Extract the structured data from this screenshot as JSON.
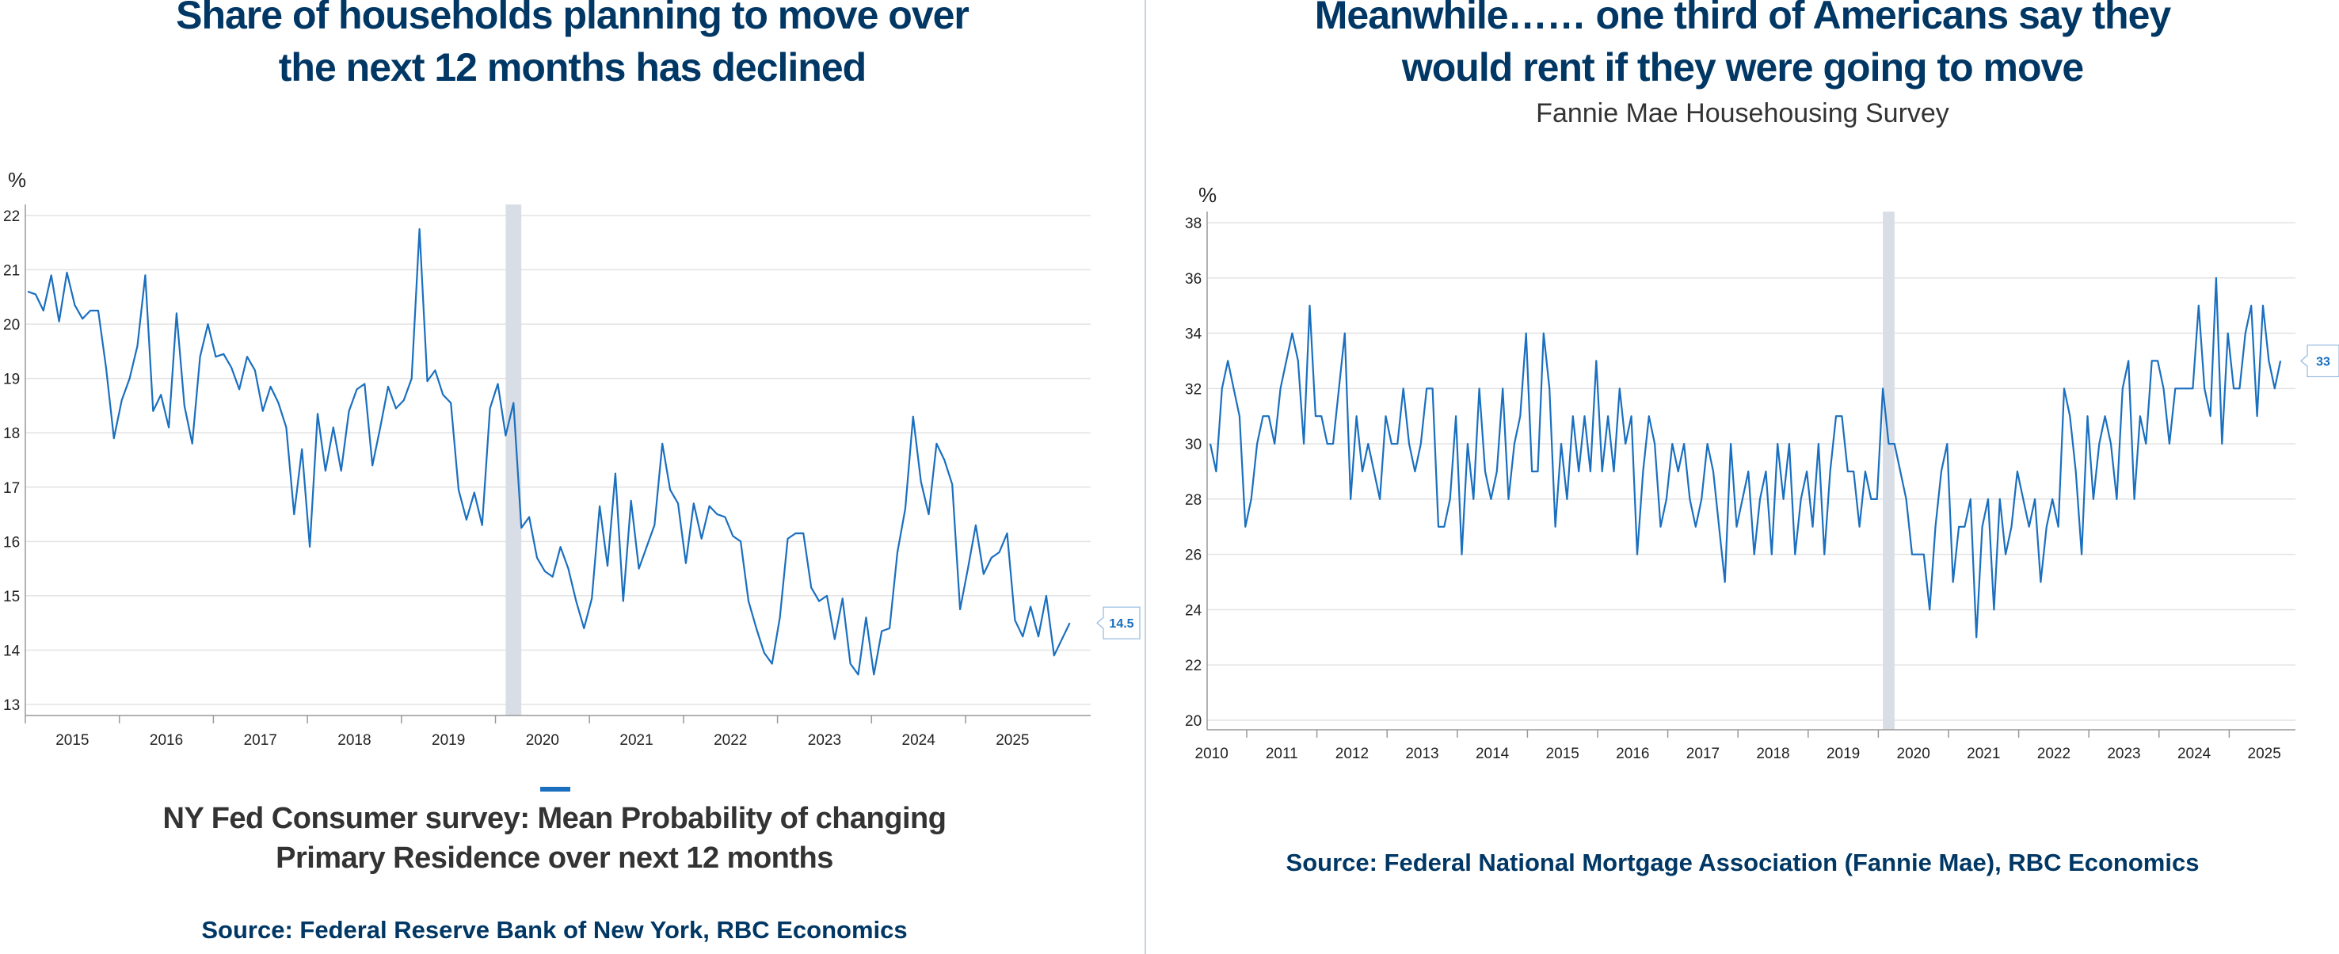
{
  "colors": {
    "title": "#003764",
    "line": "#1a6fbf",
    "recession_shade": "#d9dee6",
    "grid": "#e3e3e3"
  },
  "left": {
    "title_line1": "Share of households planning to move over",
    "title_line2": "the next 12 months has declined",
    "caption_line1": "NY Fed Consumer survey: Mean Probability of changing",
    "caption_line2": "Primary Residence over next 12 months",
    "source": "Source: Federal Reserve Bank of New York, RBC Economics"
  },
  "right": {
    "title_line1": "Meanwhile…… one third of Americans say they",
    "title_line2": "would rent if they were going to move",
    "subtitle": "Fannie Mae Househousing Survey",
    "source": "Source: Federal National Mortgage Association (Fannie Mae), RBC Economics"
  },
  "chart_data": [
    {
      "type": "line",
      "ylabel": "%",
      "ylim": [
        13,
        22
      ],
      "yticks": [
        "13",
        "14",
        "15",
        "16",
        "17",
        "18",
        "19",
        "20",
        "21",
        "22"
      ],
      "xticks": [
        "2015",
        "2016",
        "2017",
        "2018",
        "2019",
        "2020",
        "2021",
        "2022",
        "2023",
        "2024",
        "2025"
      ],
      "grid": true,
      "x_start": "2015-01",
      "x_frequency": "monthly",
      "shaded_period": [
        "2020-02",
        "2020-04"
      ],
      "last_value_label": "14.5",
      "values": [
        20.6,
        20.55,
        20.25,
        20.9,
        20.05,
        20.95,
        20.35,
        20.1,
        20.25,
        20.25,
        19.2,
        17.9,
        18.6,
        19.0,
        19.6,
        20.9,
        18.4,
        18.7,
        18.1,
        20.2,
        18.5,
        17.8,
        19.4,
        20.0,
        19.4,
        19.45,
        19.2,
        18.8,
        19.4,
        19.15,
        18.4,
        18.85,
        18.55,
        18.1,
        16.5,
        17.7,
        15.9,
        18.35,
        17.3,
        18.1,
        17.3,
        18.4,
        18.8,
        18.9,
        17.4,
        18.1,
        18.85,
        18.45,
        18.6,
        19.0,
        21.75,
        18.95,
        19.15,
        18.7,
        18.55,
        16.95,
        16.4,
        16.9,
        16.3,
        18.45,
        18.9,
        17.95,
        18.55,
        16.25,
        16.45,
        15.7,
        15.45,
        15.35,
        15.9,
        15.5,
        14.9,
        14.4,
        14.95,
        16.65,
        15.55,
        17.25,
        14.9,
        16.75,
        15.5,
        15.9,
        16.3,
        17.8,
        16.95,
        16.7,
        15.6,
        16.7,
        16.05,
        16.65,
        16.5,
        16.45,
        16.1,
        16.0,
        14.9,
        14.4,
        13.95,
        13.75,
        14.6,
        16.05,
        16.15,
        16.15,
        15.15,
        14.9,
        15.0,
        14.2,
        14.95,
        13.75,
        13.55,
        14.6,
        13.55,
        14.35,
        14.4,
        15.8,
        16.6,
        18.3,
        17.1,
        16.5,
        17.8,
        17.5,
        17.05,
        14.75,
        15.5,
        16.3,
        15.4,
        15.7,
        15.8,
        16.15,
        14.55,
        14.25,
        14.8,
        14.25,
        15.0,
        13.9,
        14.2,
        14.5
      ]
    },
    {
      "type": "line",
      "ylabel": "%",
      "ylim": [
        20,
        38
      ],
      "yticks": [
        "20",
        "22",
        "24",
        "26",
        "28",
        "30",
        "32",
        "34",
        "36",
        "38"
      ],
      "xticks": [
        "2010",
        "2011",
        "2012",
        "2013",
        "2014",
        "2015",
        "2016",
        "2017",
        "2018",
        "2019",
        "2020",
        "2021",
        "2022",
        "2023",
        "2024",
        "2025"
      ],
      "grid": true,
      "x_start": "2010-07",
      "x_frequency": "monthly",
      "shaded_period": [
        "2020-02",
        "2020-04"
      ],
      "last_value_label": "33",
      "values": [
        30,
        29,
        32,
        33,
        32,
        31,
        27,
        28,
        30,
        31,
        31,
        30,
        32,
        33,
        34,
        33,
        30,
        35,
        31,
        31,
        30,
        30,
        32,
        34,
        28,
        31,
        29,
        30,
        29,
        28,
        31,
        30,
        30,
        32,
        30,
        29,
        30,
        32,
        32,
        27,
        27,
        28,
        31,
        26,
        30,
        28,
        32,
        29,
        28,
        29,
        32,
        28,
        30,
        31,
        34,
        29,
        29,
        34,
        32,
        27,
        30,
        28,
        31,
        29,
        31,
        29,
        33,
        29,
        31,
        29,
        32,
        30,
        31,
        26,
        29,
        31,
        30,
        27,
        28,
        30,
        29,
        30,
        28,
        27,
        28,
        30,
        29,
        27,
        25,
        30,
        27,
        28,
        29,
        26,
        28,
        29,
        26,
        30,
        28,
        30,
        26,
        28,
        29,
        27,
        30,
        26,
        29,
        31,
        31,
        29,
        29,
        27,
        29,
        28,
        28,
        32,
        30,
        30,
        29,
        28,
        26,
        26,
        26,
        24,
        27,
        29,
        30,
        25,
        27,
        27,
        28,
        23,
        27,
        28,
        24,
        28,
        26,
        27,
        29,
        28,
        27,
        28,
        25,
        27,
        28,
        27,
        32,
        31,
        29,
        26,
        31,
        28,
        30,
        31,
        30,
        28,
        32,
        33,
        28,
        31,
        30,
        33,
        33,
        32,
        30,
        32,
        32,
        32,
        32,
        35,
        32,
        31,
        36,
        30,
        34,
        32,
        32,
        34,
        35,
        31,
        35,
        33,
        32,
        33
      ]
    }
  ]
}
